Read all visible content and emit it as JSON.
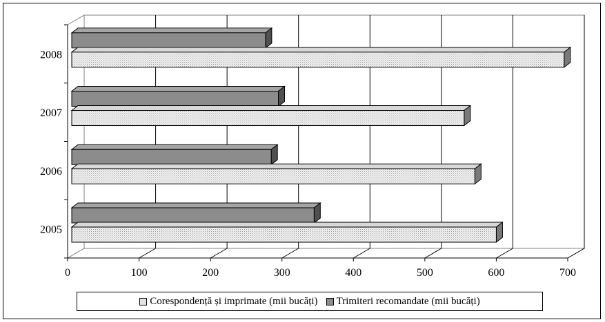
{
  "chart_data": {
    "type": "bar",
    "orientation": "horizontal",
    "style": "3d",
    "categories": [
      "2005",
      "2006",
      "2007",
      "2008"
    ],
    "series": [
      {
        "name": "Corespondență și imprimate (mii bucăți)",
        "values": [
          600,
          570,
          555,
          695
        ],
        "color": "#e4e4e4"
      },
      {
        "name": "Trimiteri recomandate (mii bucăți)",
        "values": [
          345,
          285,
          295,
          277
        ],
        "color": "#8c8c8c"
      }
    ],
    "xlim": [
      0,
      700
    ],
    "xticks": [
      0,
      100,
      200,
      300,
      400,
      500,
      600,
      700
    ],
    "grid": true,
    "legend_position": "bottom",
    "title": "",
    "xlabel": "",
    "ylabel": ""
  }
}
